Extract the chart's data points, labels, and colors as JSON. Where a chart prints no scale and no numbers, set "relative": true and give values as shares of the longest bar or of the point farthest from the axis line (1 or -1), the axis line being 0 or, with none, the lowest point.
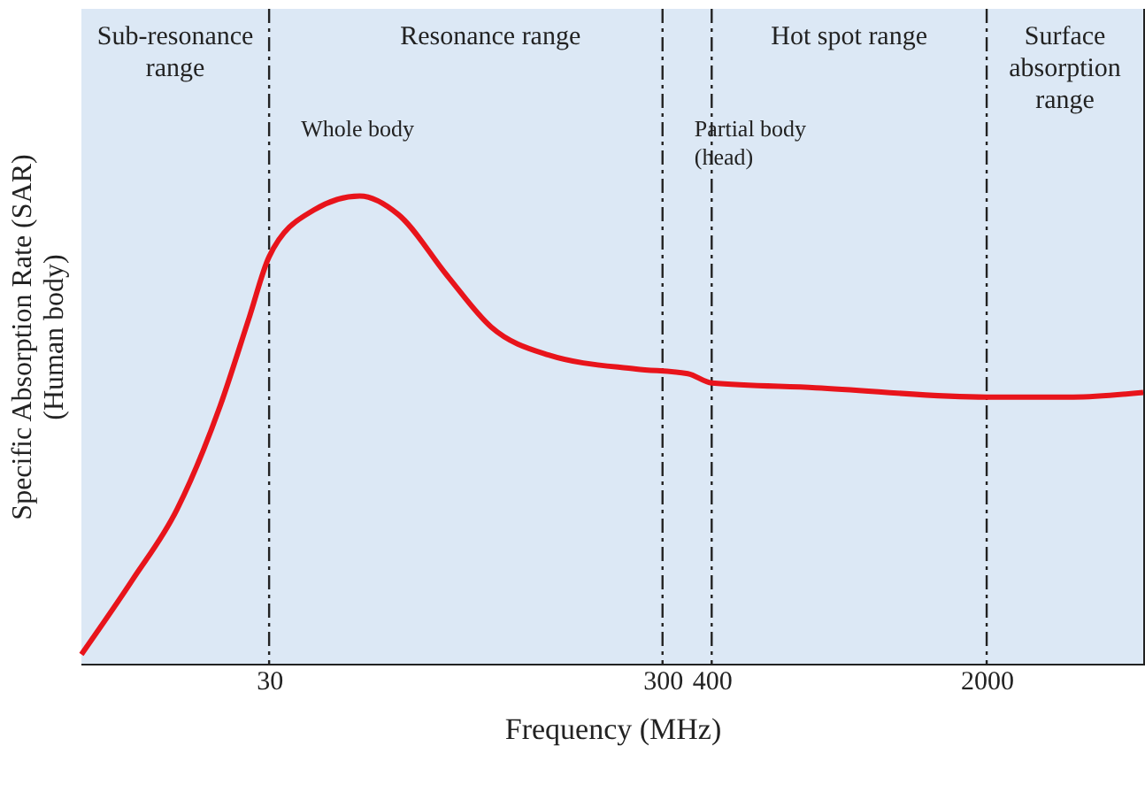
{
  "chart_data": {
    "type": "line",
    "relative": true,
    "xlabel": "Frequency (MHz)",
    "ylabel": "Specific Absorption Rate  (SAR) (Human body)",
    "x": [
      10,
      13.5,
      17.5,
      22.5,
      26.7,
      30,
      39,
      51,
      64,
      85,
      110,
      154,
      257,
      348,
      400,
      736,
      2000,
      3320,
      5000
    ],
    "series": [
      {
        "color": "#e8141b",
        "values": [
          0.02,
          0.18,
          0.33,
          0.55,
          0.74,
          0.87,
          0.97,
          1.0,
          0.96,
          0.83,
          0.72,
          0.66,
          0.63,
          0.62,
          0.6,
          0.59,
          0.57,
          0.57,
          0.58
        ]
      }
    ],
    "log": "x",
    "xlim": [
      10,
      5000
    ],
    "xticks": [
      30,
      300,
      400,
      2000
    ],
    "tick_labels": "x",
    "grid": false,
    "ref_lines": [
      {
        "axis": "x",
        "value": 30,
        "color": "#222222",
        "label": "Whole body"
      },
      {
        "axis": "x",
        "value": 300,
        "color": "#222222",
        "label": "Partial body (head)"
      },
      {
        "axis": "x",
        "value": 400,
        "color": "#222222"
      },
      {
        "axis": "x",
        "value": 2000,
        "color": "#222222"
      }
    ],
    "bands": [
      {
        "axis": "x",
        "from": 10,
        "to": 30,
        "label": "Sub-resonance range",
        "color": "#dce8f5"
      },
      {
        "axis": "x",
        "from": 30,
        "to": 400,
        "label": "Resonance range",
        "color": "#dce8f5"
      },
      {
        "axis": "x",
        "from": 400,
        "to": 2000,
        "label": "Hot spot range",
        "color": "#dce8f5"
      },
      {
        "axis": "x",
        "from": 2000,
        "to": 5000,
        "label": "Surface absorption range",
        "color": "#dce8f5"
      }
    ]
  }
}
